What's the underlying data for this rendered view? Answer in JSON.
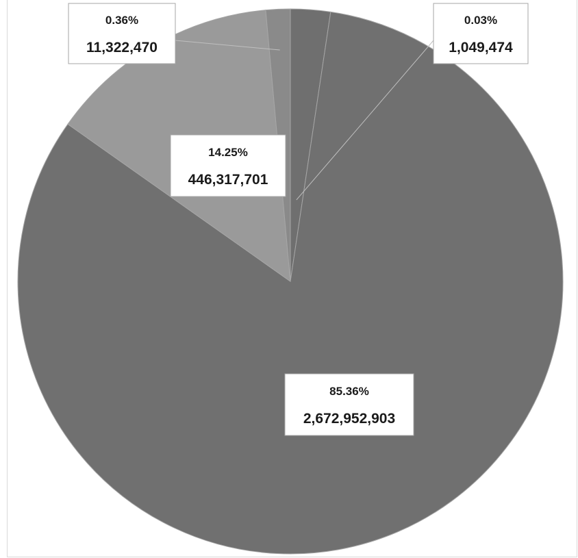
{
  "chart_data": {
    "type": "pie",
    "title": "",
    "slices": [
      {
        "percent_label": "0.03%",
        "value_label": "1,049,474",
        "value": 1049474,
        "color": "#6f6f6f"
      },
      {
        "percent_label": "85.36%",
        "value_label": "2,672,952,903",
        "value": 2672952903,
        "color": "#707070"
      },
      {
        "percent_label": "14.25%",
        "value_label": "446,317,701",
        "value": 446317701,
        "color": "#9a9a9a"
      },
      {
        "percent_label": "0.36%",
        "value_label": "11,322,470",
        "value": 11322470,
        "color": "#8a8a8a"
      }
    ],
    "start_angle_deg": 0,
    "direction": "clockwise",
    "legend": "none"
  }
}
